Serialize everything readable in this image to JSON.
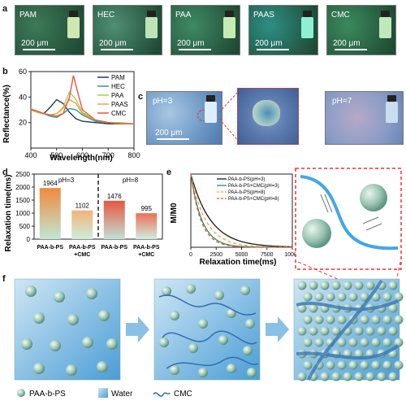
{
  "panels": {
    "a": "a",
    "b": "b",
    "c": "c",
    "d": "d",
    "e": "e",
    "f": "f"
  },
  "panel_a": {
    "scale_label": "200 μm",
    "images": [
      {
        "name": "PAM",
        "bg": "#3d7a57",
        "vial": "#cfe7b0"
      },
      {
        "name": "HEC",
        "bg": "#4f8f74",
        "vial": "#bde3b7"
      },
      {
        "name": "PAA",
        "bg": "#3f8a63",
        "vial": "#c6ecb4"
      },
      {
        "name": "PAAS",
        "bg": "#2d8f86",
        "vial": "#8ef0d2"
      },
      {
        "name": "CMC",
        "bg": "#3b8a5e",
        "vial": "#bfe9bd"
      }
    ]
  },
  "panel_c": {
    "left_label": "pH=3",
    "right_label": "pH=7",
    "scale_label": "200 μm"
  },
  "panel_f_legend": {
    "particle": "PAA-b-PS",
    "water": "Water",
    "cmc": "CMC"
  },
  "chart_data": [
    {
      "panel": "b",
      "type": "line",
      "xlabel": "Wavelength(nm)",
      "ylabel": "Reflectance(%)",
      "xlim": [
        400,
        800
      ],
      "ylim": [
        0,
        60
      ],
      "xticks": [
        400,
        500,
        600,
        700,
        800
      ],
      "yticks": [
        20,
        40,
        60
      ],
      "legend_position": "top-right",
      "series": [
        {
          "name": "PAM",
          "color": "#1f3b57",
          "x": [
            400,
            425,
            450,
            475,
            500,
            525,
            550,
            575,
            600,
            650,
            700,
            750,
            800
          ],
          "y": [
            31,
            28,
            27,
            32,
            38,
            35,
            28,
            23,
            21,
            20,
            19,
            19,
            19
          ]
        },
        {
          "name": "HEC",
          "color": "#2a9d8f",
          "x": [
            400,
            425,
            450,
            475,
            500,
            525,
            550,
            575,
            600,
            650,
            700,
            750,
            800
          ],
          "y": [
            30,
            28,
            27,
            25,
            24,
            27,
            31,
            30,
            26,
            21,
            20,
            19,
            19
          ]
        },
        {
          "name": "PAA",
          "color": "#a3cf5e",
          "x": [
            400,
            425,
            450,
            475,
            500,
            525,
            550,
            575,
            600,
            650,
            700,
            750,
            800
          ],
          "y": [
            30,
            28,
            27,
            26,
            27,
            32,
            44,
            38,
            28,
            22,
            20,
            20,
            19
          ]
        },
        {
          "name": "PAAS",
          "color": "#f4a340",
          "x": [
            400,
            425,
            450,
            475,
            500,
            525,
            550,
            575,
            600,
            650,
            700,
            750,
            800
          ],
          "y": [
            31,
            29,
            27,
            26,
            27,
            31,
            38,
            35,
            27,
            22,
            20,
            19,
            19
          ]
        },
        {
          "name": "CMC",
          "color": "#e8563f",
          "x": [
            400,
            425,
            450,
            475,
            500,
            525,
            550,
            565,
            580,
            600,
            650,
            700,
            750,
            800
          ],
          "y": [
            30,
            29,
            27,
            26,
            25,
            27,
            40,
            57,
            45,
            30,
            22,
            20,
            19,
            19
          ]
        }
      ]
    },
    {
      "panel": "d",
      "type": "bar",
      "ylabel": "Relaxation time(ms)",
      "ylim": [
        0,
        2500
      ],
      "yticks": [
        0,
        500,
        1000,
        1500,
        2000,
        2500
      ],
      "groups": [
        "pH=3",
        "pH=8"
      ],
      "categories": [
        "PAA-b-PS",
        "PAA-b-PS +CMC",
        "PAA-b-PS",
        "PAA-b-PS +CMC"
      ],
      "category_lines": [
        [
          "PAA-b-PS"
        ],
        [
          "PAA-b-PS",
          "+CMC"
        ],
        [
          "PAA-b-PS"
        ],
        [
          "PAA-b-PS",
          "+CMC"
        ]
      ],
      "values": [
        1964,
        1102,
        1476,
        995
      ],
      "value_labels": [
        "1964",
        "1102",
        "1476",
        "995"
      ]
    },
    {
      "panel": "e",
      "type": "line",
      "xlabel": "Relaxation time(ms)",
      "ylabel": "M/M0",
      "xlim": [
        0,
        10000
      ],
      "ylim": [
        0,
        1
      ],
      "xticks": [
        0,
        2500,
        5000,
        7500,
        10000
      ],
      "legend_position": "top-right",
      "series": [
        {
          "name": "PAA-b-PS(pH=3)",
          "color": "#1a1a1a",
          "dash": "",
          "tau": 1964
        },
        {
          "name": "PAA-b-PS+CMC(pH=3)",
          "color": "#2e8b6f",
          "dash": "",
          "tau": 1102
        },
        {
          "name": "PAA-b-PS(pH=8)",
          "color": "#f2a24a",
          "dash": "4,3",
          "tau": 1476
        },
        {
          "name": "PAA-b-PS+CMC(pH=8)",
          "color": "#e8563f",
          "dash": "4,3",
          "tau": 995
        }
      ]
    }
  ]
}
